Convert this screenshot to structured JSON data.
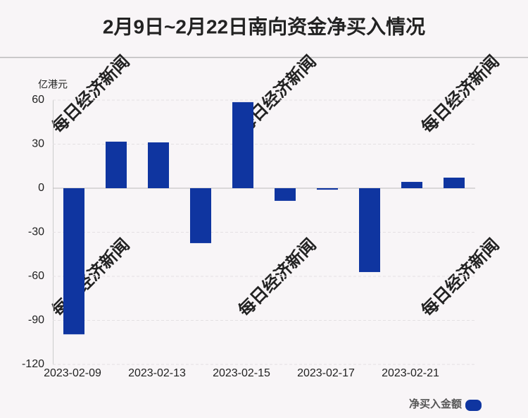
{
  "chart_data": {
    "type": "bar",
    "title": "2月9日~2月22日南向资金净买入情况",
    "y_unit": "亿港元",
    "watermark": "每日经济新闻",
    "categories": [
      "2023-02-09",
      null,
      "2023-02-13",
      null,
      "2023-02-15",
      null,
      "2023-02-17",
      null,
      "2023-02-21",
      null
    ],
    "series": [
      {
        "name": "净买入金额",
        "color": "#0f35a0",
        "values": [
          -99.5,
          31.7,
          31.2,
          -37.4,
          58.6,
          -8.6,
          -1.0,
          -57.1,
          4.3,
          7.2
        ]
      }
    ],
    "ylim": [
      -120,
      60
    ],
    "yticks": [
      -120,
      -90,
      -60,
      -30,
      0,
      30,
      60
    ],
    "grid": true
  }
}
